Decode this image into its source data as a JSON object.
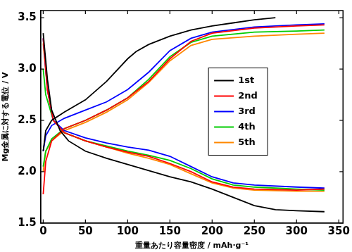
{
  "chart_data": {
    "type": "line",
    "x_label": "重量あたり容量密度 / mAh·g⁻¹",
    "y_label": "Mg金属に対する電位 / V",
    "xlim": [
      -3,
      355
    ],
    "xticks": [
      0,
      50,
      100,
      150,
      200,
      250,
      300,
      350
    ],
    "ylim": [
      1.5,
      3.57
    ],
    "yticks": [
      1.5,
      {
        "value": 2,
        "label": "2.0"
      },
      2.5,
      {
        "value": 3,
        "label": "3.0"
      },
      3.5
    ],
    "grid": false,
    "legend": "right",
    "series": [
      {
        "name": "1st",
        "color": "#000000",
        "x": [
          0,
          3,
          10,
          25,
          50,
          75,
          100,
          110,
          125,
          150,
          175,
          200,
          225,
          250,
          275,
          null,
          0,
          5,
          10,
          20,
          30,
          50,
          75,
          100,
          125,
          150,
          175,
          200,
          225,
          250,
          275,
          300,
          333
        ],
        "values": [
          2.2,
          2.4,
          2.5,
          2.58,
          2.7,
          2.88,
          3.1,
          3.17,
          3.24,
          3.32,
          3.38,
          3.42,
          3.45,
          3.48,
          3.5,
          null,
          3.35,
          2.9,
          2.6,
          2.4,
          2.3,
          2.2,
          2.13,
          2.07,
          2.01,
          1.95,
          1.9,
          1.83,
          1.75,
          1.67,
          1.63,
          1.62,
          1.61
        ]
      },
      {
        "name": "2nd",
        "color": "#ff0000",
        "x": [
          0,
          3,
          10,
          25,
          50,
          75,
          100,
          125,
          150,
          175,
          200,
          250,
          300,
          333,
          null,
          0,
          5,
          12,
          25,
          50,
          75,
          100,
          125,
          150,
          175,
          200,
          225,
          250,
          300,
          333
        ],
        "values": [
          1.78,
          2.1,
          2.3,
          2.42,
          2.5,
          2.6,
          2.72,
          2.88,
          3.1,
          3.27,
          3.35,
          3.4,
          3.42,
          3.43,
          null,
          3.3,
          2.8,
          2.5,
          2.38,
          2.3,
          2.24,
          2.19,
          2.15,
          2.08,
          2.0,
          1.9,
          1.85,
          1.83,
          1.82,
          1.83
        ]
      },
      {
        "name": "3rd",
        "color": "#0000ff",
        "x": [
          0,
          3,
          10,
          25,
          50,
          75,
          100,
          125,
          150,
          175,
          200,
          250,
          300,
          333,
          null,
          0,
          5,
          12,
          25,
          50,
          75,
          100,
          125,
          150,
          175,
          200,
          225,
          250,
          300,
          333
        ],
        "values": [
          2.2,
          2.35,
          2.45,
          2.52,
          2.6,
          2.68,
          2.8,
          2.97,
          3.18,
          3.3,
          3.36,
          3.41,
          3.43,
          3.44,
          null,
          3.3,
          2.8,
          2.5,
          2.4,
          2.33,
          2.28,
          2.24,
          2.21,
          2.15,
          2.05,
          1.95,
          1.89,
          1.87,
          1.85,
          1.84
        ]
      },
      {
        "name": "4th",
        "color": "#00cc00",
        "x": [
          0,
          3,
          10,
          25,
          50,
          75,
          100,
          125,
          150,
          175,
          200,
          250,
          300,
          333,
          null,
          0,
          3,
          12,
          25,
          50,
          75,
          100,
          125,
          150,
          175,
          200,
          225,
          250,
          300,
          333
        ],
        "values": [
          2.05,
          2.2,
          2.32,
          2.42,
          2.5,
          2.6,
          2.72,
          2.9,
          3.12,
          3.26,
          3.32,
          3.36,
          3.37,
          3.38,
          null,
          3.0,
          2.75,
          2.5,
          2.38,
          2.3,
          2.25,
          2.2,
          2.16,
          2.11,
          2.03,
          1.93,
          1.87,
          1.85,
          1.83,
          1.82
        ]
      },
      {
        "name": "5th",
        "color": "#ff8800",
        "x": [
          0,
          3,
          10,
          25,
          50,
          75,
          100,
          125,
          150,
          175,
          200,
          250,
          300,
          333,
          null,
          0,
          5,
          12,
          25,
          50,
          75,
          100,
          125,
          150,
          175,
          200,
          225,
          250,
          300,
          333
        ],
        "values": [
          2.0,
          2.2,
          2.3,
          2.4,
          2.48,
          2.58,
          2.7,
          2.87,
          3.08,
          3.23,
          3.29,
          3.32,
          3.34,
          3.35,
          null,
          3.25,
          2.8,
          2.5,
          2.38,
          2.3,
          2.24,
          2.18,
          2.13,
          2.07,
          1.98,
          1.89,
          1.84,
          1.82,
          1.81,
          1.81
        ]
      }
    ]
  }
}
